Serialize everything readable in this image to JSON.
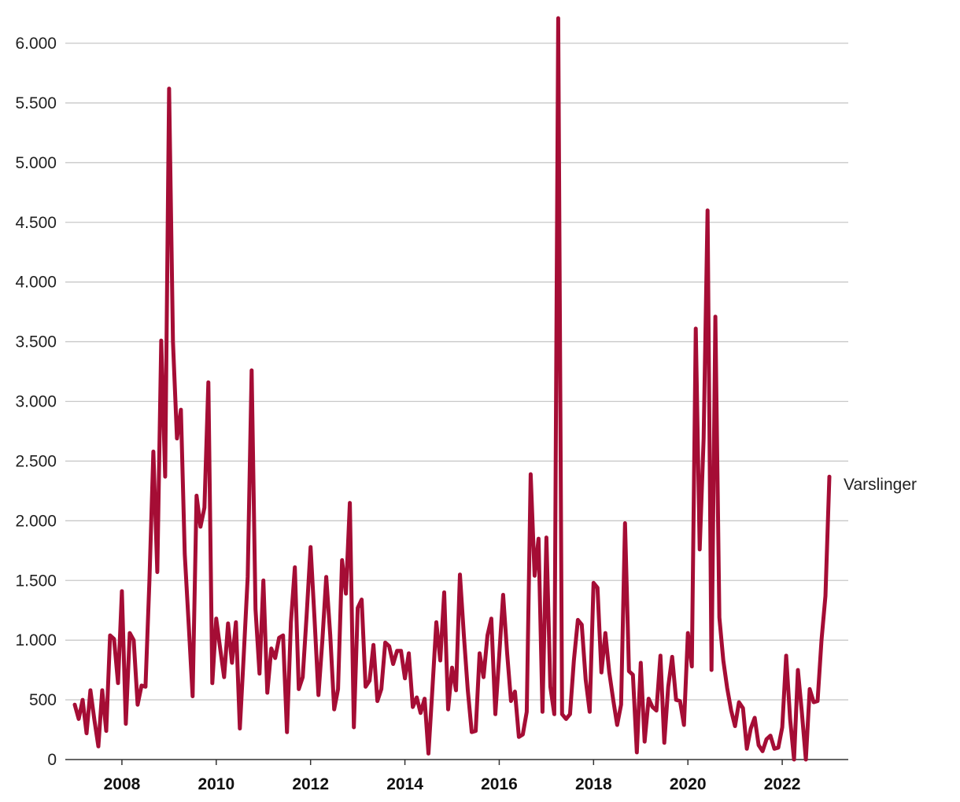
{
  "chart_data": {
    "type": "line",
    "title": "",
    "xlabel": "",
    "ylabel": "",
    "xlim": [
      2006.8,
      2023.4
    ],
    "ylim": [
      0,
      6000
    ],
    "grid": true,
    "legend": "end-of-line label",
    "yticks": [
      0,
      500,
      1000,
      1500,
      2000,
      2500,
      3000,
      3500,
      4000,
      4500,
      5000,
      5500,
      6000
    ],
    "ytick_labels": [
      "0",
      "500",
      "1.000",
      "1.500",
      "2.000",
      "2.500",
      "3.000",
      "3.500",
      "4.000",
      "4.500",
      "5.000",
      "5.500",
      "6.000"
    ],
    "xticks": [
      2008,
      2010,
      2012,
      2014,
      2016,
      2018,
      2020,
      2022
    ],
    "xtick_labels": [
      "2008",
      "2010",
      "2012",
      "2014",
      "2016",
      "2018",
      "2020",
      "2022"
    ],
    "series": [
      {
        "name": "Varslinger",
        "color": "#a50d35",
        "x": [
          2007.0,
          2007.083,
          2007.167,
          2007.25,
          2007.333,
          2007.417,
          2007.5,
          2007.583,
          2007.667,
          2007.75,
          2007.833,
          2007.917,
          2008.0,
          2008.083,
          2008.167,
          2008.25,
          2008.333,
          2008.417,
          2008.5,
          2008.583,
          2008.667,
          2008.75,
          2008.833,
          2008.917,
          2009.0,
          2009.083,
          2009.167,
          2009.25,
          2009.333,
          2009.417,
          2009.5,
          2009.583,
          2009.667,
          2009.75,
          2009.833,
          2009.917,
          2010.0,
          2010.083,
          2010.167,
          2010.25,
          2010.333,
          2010.417,
          2010.5,
          2010.583,
          2010.667,
          2010.75,
          2010.833,
          2010.917,
          2011.0,
          2011.083,
          2011.167,
          2011.25,
          2011.333,
          2011.417,
          2011.5,
          2011.583,
          2011.667,
          2011.75,
          2011.833,
          2011.917,
          2012.0,
          2012.083,
          2012.167,
          2012.25,
          2012.333,
          2012.417,
          2012.5,
          2012.583,
          2012.667,
          2012.75,
          2012.833,
          2012.917,
          2013.0,
          2013.083,
          2013.167,
          2013.25,
          2013.333,
          2013.417,
          2013.5,
          2013.583,
          2013.667,
          2013.75,
          2013.833,
          2013.917,
          2014.0,
          2014.083,
          2014.167,
          2014.25,
          2014.333,
          2014.417,
          2014.5,
          2014.583,
          2014.667,
          2014.75,
          2014.833,
          2014.917,
          2015.0,
          2015.083,
          2015.167,
          2015.25,
          2015.333,
          2015.417,
          2015.5,
          2015.583,
          2015.667,
          2015.75,
          2015.833,
          2015.917,
          2016.0,
          2016.083,
          2016.167,
          2016.25,
          2016.333,
          2016.417,
          2016.5,
          2016.583,
          2016.667,
          2016.75,
          2016.833,
          2016.917,
          2017.0,
          2017.083,
          2017.167,
          2017.25,
          2017.333,
          2017.417,
          2017.5,
          2017.583,
          2017.667,
          2017.75,
          2017.833,
          2017.917,
          2018.0,
          2018.083,
          2018.167,
          2018.25,
          2018.333,
          2018.417,
          2018.5,
          2018.583,
          2018.667,
          2018.75,
          2018.833,
          2018.917,
          2019.0,
          2019.083,
          2019.167,
          2019.25,
          2019.333,
          2019.417,
          2019.5,
          2019.583,
          2019.667,
          2019.75,
          2019.833,
          2019.917,
          2020.0,
          2020.083,
          2020.167,
          2020.25,
          2020.333,
          2020.417,
          2020.5,
          2020.583,
          2020.667,
          2020.75,
          2020.833,
          2020.917,
          2021.0,
          2021.083,
          2021.167,
          2021.25,
          2021.333,
          2021.417,
          2021.5,
          2021.583,
          2021.667,
          2021.75,
          2021.833,
          2021.917,
          2022.0,
          2022.083,
          2022.167,
          2022.25,
          2022.333,
          2022.417,
          2022.5,
          2022.583,
          2022.667,
          2022.75,
          2022.833,
          2022.917,
          2023.0
        ],
        "y": [
          460,
          340,
          500,
          220,
          580,
          330,
          110,
          580,
          240,
          1040,
          1010,
          640,
          1410,
          300,
          1060,
          1000,
          460,
          620,
          610,
          1500,
          2580,
          1570,
          3510,
          2370,
          5620,
          3500,
          2690,
          2930,
          1720,
          1120,
          530,
          2210,
          1950,
          2110,
          3160,
          640,
          1180,
          930,
          690,
          1140,
          810,
          1150,
          260,
          880,
          1530,
          3260,
          1260,
          720,
          1500,
          560,
          930,
          850,
          1020,
          1040,
          230,
          1150,
          1610,
          590,
          690,
          1210,
          1780,
          1180,
          540,
          1000,
          1530,
          1040,
          420,
          590,
          1670,
          1390,
          2150,
          270,
          1270,
          1340,
          610,
          660,
          960,
          490,
          590,
          980,
          950,
          800,
          910,
          910,
          680,
          890,
          440,
          520,
          390,
          510,
          50,
          590,
          1150,
          830,
          1400,
          420,
          770,
          580,
          1550,
          1040,
          580,
          230,
          240,
          890,
          690,
          1040,
          1180,
          380,
          870,
          1380,
          890,
          490,
          570,
          190,
          210,
          400,
          2390,
          1540,
          1850,
          400,
          1860,
          610,
          380,
          6210,
          380,
          340,
          380,
          830,
          1170,
          1130,
          670,
          400,
          1480,
          1440,
          730,
          1060,
          730,
          500,
          290,
          460,
          1980,
          740,
          710,
          60,
          810,
          150,
          510,
          440,
          410,
          870,
          140,
          610,
          860,
          500,
          490,
          290,
          1060,
          780,
          3610,
          1760,
          2690,
          4600,
          750,
          3710,
          1190,
          830,
          600,
          410,
          280,
          480,
          430,
          90,
          260,
          350,
          120,
          70,
          170,
          200,
          90,
          100,
          270,
          870,
          340,
          0,
          750,
          390,
          0,
          590,
          480,
          490,
          1000,
          1370,
          2370
        ]
      }
    ]
  }
}
